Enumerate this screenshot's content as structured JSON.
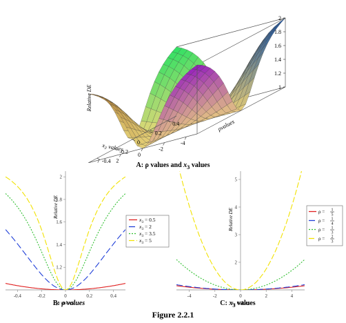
{
  "figure_caption": "Figure 2.2.1",
  "chart_data": [
    {
      "id": "A",
      "type": "surface",
      "caption_a": "A: ρ values and ",
      "caption_b": "x",
      "caption_sub": "3",
      "caption_c": " values",
      "zlabel": "Relative DE",
      "xlabel_a": "x",
      "xlabel_sub": "3",
      "xlabel_b": " values",
      "ylabel": "ρvalues",
      "x_ticks": [
        "-4",
        "-2",
        "0",
        "2",
        "4"
      ],
      "y_ticks": [
        "-0.4",
        "-0.2",
        "0",
        "0.2",
        "0.4"
      ],
      "z_ticks": [
        "1",
        "1.2",
        "1.4",
        "1.6",
        "1.8",
        "2"
      ],
      "x_range": [
        -5,
        5
      ],
      "y_range": [
        -0.5,
        0.5
      ],
      "z_range": [
        1,
        2
      ],
      "formula_note": "1 + 0.96*x3^2*rho^2/(1+0.8*x3^2*rho^2)"
    },
    {
      "id": "B",
      "type": "line",
      "caption_a": "B: ",
      "caption_b": "ρ values",
      "xlabel": "ρ values",
      "ylabel": "Relative DE",
      "xlim": [
        -0.5,
        0.5
      ],
      "ylim": [
        1,
        2.05
      ],
      "x_ticks": [
        "-0.4",
        "-0.2",
        "0",
        "0.2",
        "0.4"
      ],
      "y_ticks": [
        "1.2",
        "1.4",
        "1.6",
        "1.8",
        "2"
      ],
      "legend_position": "right",
      "series": [
        {
          "name_a": "x",
          "name_sub": "3",
          "name_b": " = 0.5",
          "color": "#e02020",
          "dash": "",
          "x3": 0.5
        },
        {
          "name_a": "x",
          "name_sub": "3",
          "name_b": " = 2",
          "color": "#1f3fd8",
          "dash": "9,4",
          "x3": 2
        },
        {
          "name_a": "x",
          "name_sub": "3",
          "name_b": " = 3.5",
          "color": "#2fbf2f",
          "dash": "2,2",
          "x3": 3.5
        },
        {
          "name_a": "x",
          "name_sub": "3",
          "name_b": " = 5",
          "color": "#f2e200",
          "dash": "8,3",
          "x3": 5
        }
      ]
    },
    {
      "id": "C",
      "type": "line",
      "caption_a": "C: ",
      "caption_b": "x",
      "caption_sub": "3",
      "caption_c": " values",
      "xlabel_a": "x",
      "xlabel_sub": "3",
      "xlabel_b": " values",
      "ylabel": "Relative DE",
      "xlim": [
        -5,
        5
      ],
      "ylim": [
        1,
        5.3
      ],
      "x_ticks": [
        "-4",
        "-2",
        "0",
        "2",
        "4"
      ],
      "y_ticks": [
        "2",
        "3",
        "4",
        "5"
      ],
      "legend_position": "right",
      "series": [
        {
          "name_num": "1",
          "name_den": "5",
          "color": "#e02020",
          "dash": "",
          "rho": 0.2
        },
        {
          "name_num": "1",
          "name_den": "4",
          "color": "#1f3fd8",
          "dash": "9,4",
          "rho": 0.25
        },
        {
          "name_num": "1",
          "name_den": "3",
          "color": "#2fbf2f",
          "dash": "2,2",
          "rho": 0.333
        },
        {
          "name_num": "2",
          "name_den": "3",
          "color": "#f2e200",
          "dash": "8,3",
          "rho": 0.667
        }
      ],
      "legend_rho": "ρ = "
    }
  ]
}
